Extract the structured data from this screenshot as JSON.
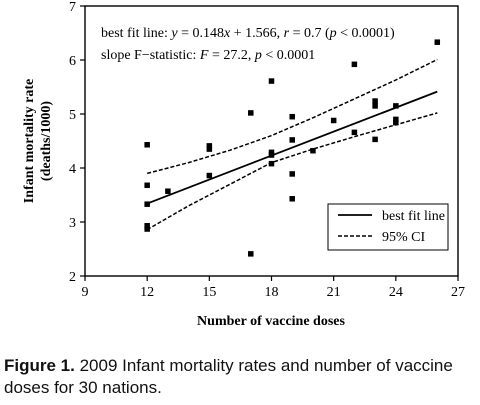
{
  "chart_data": {
    "type": "scatter",
    "xlabel": "Number of vaccine doses",
    "ylabel_line1": "Infant mortality rate",
    "ylabel_line2": "(deaths/1000)",
    "xlim": [
      9,
      27
    ],
    "ylim": [
      2,
      7
    ],
    "xticks": [
      9,
      12,
      15,
      18,
      21,
      24,
      27
    ],
    "yticks": [
      2,
      3,
      4,
      5,
      6,
      7
    ],
    "grid": false,
    "points": [
      {
        "x": 12,
        "y": 4.43
      },
      {
        "x": 12,
        "y": 3.68
      },
      {
        "x": 12,
        "y": 3.33
      },
      {
        "x": 12,
        "y": 2.93
      },
      {
        "x": 12,
        "y": 2.87
      },
      {
        "x": 13,
        "y": 3.57
      },
      {
        "x": 15,
        "y": 4.41
      },
      {
        "x": 15,
        "y": 4.35
      },
      {
        "x": 15,
        "y": 3.86
      },
      {
        "x": 17,
        "y": 5.02
      },
      {
        "x": 17,
        "y": 2.41
      },
      {
        "x": 18,
        "y": 5.61
      },
      {
        "x": 18,
        "y": 4.29
      },
      {
        "x": 18,
        "y": 4.24
      },
      {
        "x": 18,
        "y": 4.08
      },
      {
        "x": 19,
        "y": 4.95
      },
      {
        "x": 19,
        "y": 4.52
      },
      {
        "x": 19,
        "y": 3.89
      },
      {
        "x": 19,
        "y": 3.43
      },
      {
        "x": 20,
        "y": 4.32
      },
      {
        "x": 21,
        "y": 4.88
      },
      {
        "x": 22,
        "y": 5.92
      },
      {
        "x": 22,
        "y": 4.66
      },
      {
        "x": 23,
        "y": 5.24
      },
      {
        "x": 23,
        "y": 5.15
      },
      {
        "x": 23,
        "y": 4.53
      },
      {
        "x": 24,
        "y": 5.15
      },
      {
        "x": 24,
        "y": 4.9
      },
      {
        "x": 24,
        "y": 4.84
      },
      {
        "x": 26,
        "y": 6.33
      }
    ],
    "fit": {
      "slope": 0.148,
      "intercept": 1.566,
      "x_range": [
        12,
        26
      ]
    },
    "ci_upper": [
      [
        12,
        3.9
      ],
      [
        14,
        4.1
      ],
      [
        16,
        4.33
      ],
      [
        18,
        4.6
      ],
      [
        20,
        4.93
      ],
      [
        22,
        5.28
      ],
      [
        24,
        5.63
      ],
      [
        26,
        6.01
      ]
    ],
    "ci_lower": [
      [
        12,
        2.86
      ],
      [
        14,
        3.3
      ],
      [
        16,
        3.7
      ],
      [
        18,
        4.1
      ],
      [
        20,
        4.35
      ],
      [
        22,
        4.58
      ],
      [
        24,
        4.8
      ],
      [
        26,
        5.02
      ]
    ],
    "annotation_line1": {
      "prefix": "best fit line: ",
      "y": "y",
      "eq": " = 0.148",
      "x": "x",
      "rest": " + 1.566, ",
      "r": "r",
      "rval": " = 0.7 (",
      "p": "p",
      "pval": " < 0.0001)"
    },
    "annotation_line2": {
      "prefix": "slope F−statistic: ",
      "F": "F",
      "fval": " = 27.2, ",
      "p": "p",
      "pval": " < 0.0001"
    },
    "legend": {
      "position": "bottom-right",
      "entries": [
        {
          "label": "best fit line",
          "style": "solid"
        },
        {
          "label": "95% CI",
          "style": "dashed"
        }
      ]
    }
  },
  "caption": {
    "label": "Figure 1.",
    "text": " 2009 Infant mortality rates and number of vaccine doses for 30 nations."
  }
}
